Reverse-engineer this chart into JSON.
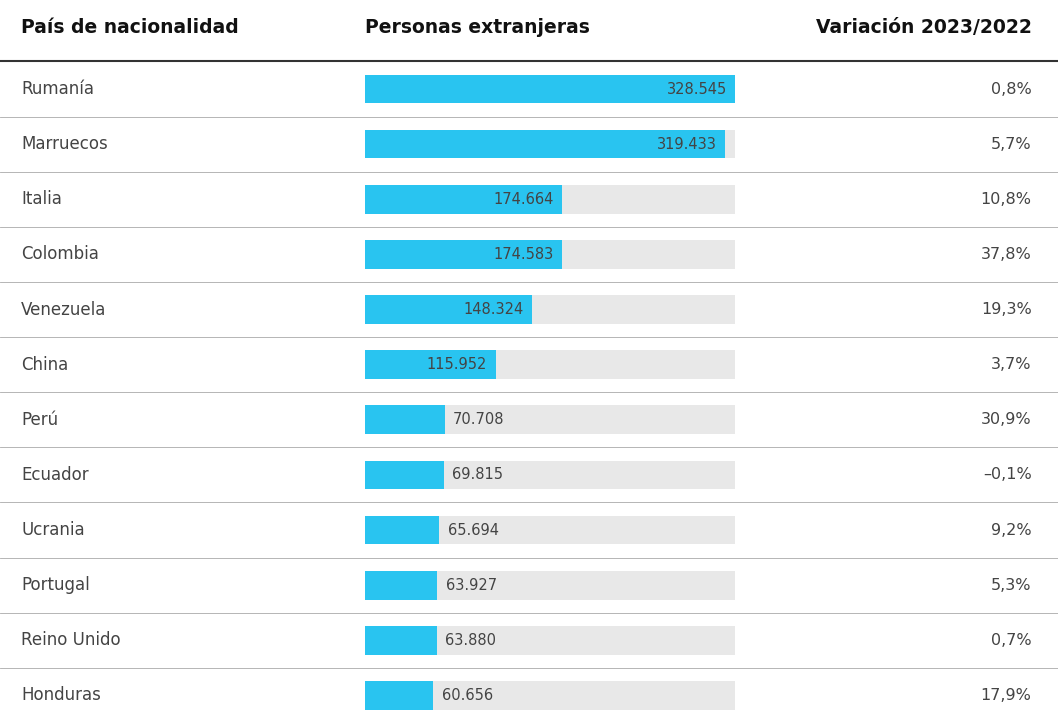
{
  "countries": [
    "Rumanía",
    "Marruecos",
    "Italia",
    "Colombia",
    "Venezuela",
    "China",
    "Perú",
    "Ecuador",
    "Ucrania",
    "Portugal",
    "Reino Unido",
    "Honduras"
  ],
  "values": [
    328545,
    319433,
    174664,
    174583,
    148324,
    115952,
    70708,
    69815,
    65694,
    63927,
    63880,
    60656
  ],
  "variations": [
    "0,8%",
    "5,7%",
    "10,8%",
    "37,8%",
    "19,3%",
    "3,7%",
    "30,9%",
    "–0,1%",
    "9,2%",
    "5,3%",
    "0,7%",
    "17,9%"
  ],
  "value_labels": [
    "328.545",
    "319.433",
    "174.664",
    "174.583",
    "148.324",
    "115.952",
    "70.708",
    "69.815",
    "65.694",
    "63.927",
    "63.880",
    "60.656"
  ],
  "bar_color": "#29C4F0",
  "bg_bar_color": "#E8E8E8",
  "max_value": 328545,
  "header_country": "País de nacionalidad",
  "header_persons": "Personas extranjeras",
  "header_variation": "Variación 2023/2022",
  "bg_color": "#FFFFFF",
  "text_color": "#444444",
  "header_color": "#111111",
  "separator_color": "#AAAAAA",
  "header_sep_color": "#333333"
}
